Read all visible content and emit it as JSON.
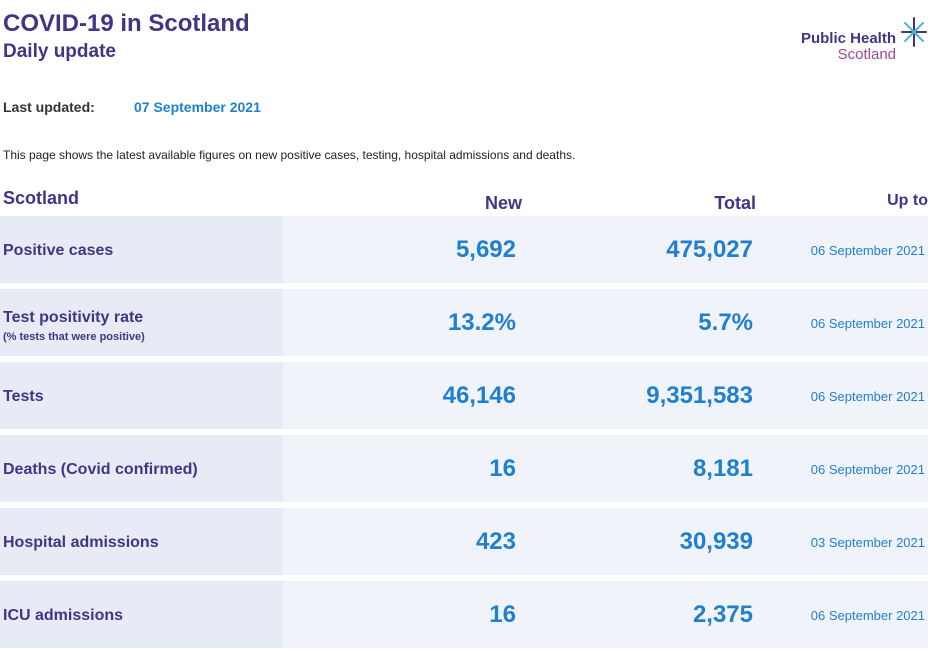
{
  "header": {
    "title": "COVID-19 in Scotland",
    "subtitle": "Daily update",
    "logo_line1": "Public Health",
    "logo_line2": "Scotland"
  },
  "updated": {
    "label": "Last updated:",
    "value": "07 September 2021"
  },
  "intro": "This page shows the latest available figures on new positive cases, testing, hospital admissions and deaths.",
  "table": {
    "headers": {
      "region": "Scotland",
      "new": "New",
      "total": "Total",
      "up_to": "Up to"
    },
    "rows": [
      {
        "label": "Positive cases",
        "sublabel": "",
        "new": "5,692",
        "total": "475,027",
        "date": "06 September 2021"
      },
      {
        "label": "Test positivity rate",
        "sublabel": "(% tests that were positive)",
        "new": "13.2%",
        "total": "5.7%",
        "date": "06 September 2021"
      },
      {
        "label": "Tests",
        "sublabel": "",
        "new": "46,146",
        "total": "9,351,583",
        "date": "06 September 2021"
      },
      {
        "label": "Deaths (Covid confirmed)",
        "sublabel": "",
        "new": "16",
        "total": "8,181",
        "date": "06 September 2021"
      },
      {
        "label": "Hospital admissions",
        "sublabel": "",
        "new": "423",
        "total": "30,939",
        "date": "03 September 2021"
      },
      {
        "label": "ICU admissions",
        "sublabel": "",
        "new": "16",
        "total": "2,375",
        "date": "06 September 2021"
      }
    ]
  },
  "colors": {
    "brand_purple": "#3f3685",
    "value_blue": "#1f7fd0",
    "logo_accent": "#9b4a96",
    "logo_star": "#4fb8c9"
  }
}
